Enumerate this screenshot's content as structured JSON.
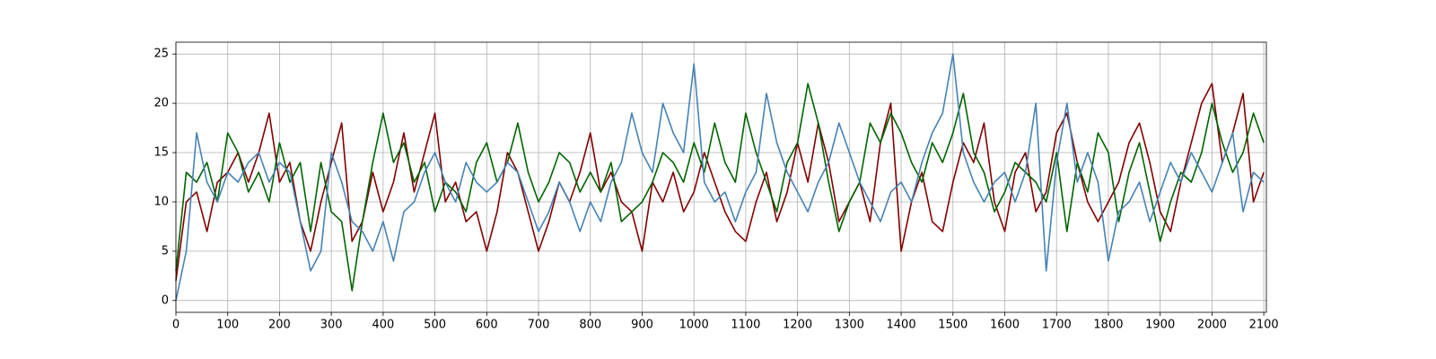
{
  "chart_data": {
    "type": "line",
    "x": [
      0,
      20,
      40,
      60,
      80,
      100,
      120,
      140,
      160,
      180,
      200,
      220,
      240,
      260,
      280,
      300,
      320,
      340,
      360,
      380,
      400,
      420,
      440,
      460,
      480,
      500,
      520,
      540,
      560,
      580,
      600,
      620,
      640,
      660,
      680,
      700,
      720,
      740,
      760,
      780,
      800,
      820,
      840,
      860,
      880,
      900,
      920,
      940,
      960,
      980,
      1000,
      1020,
      1040,
      1060,
      1080,
      1100,
      1120,
      1140,
      1160,
      1180,
      1200,
      1220,
      1240,
      1260,
      1280,
      1300,
      1320,
      1340,
      1360,
      1380,
      1400,
      1420,
      1440,
      1460,
      1480,
      1500,
      1520,
      1540,
      1560,
      1580,
      1600,
      1620,
      1640,
      1660,
      1680,
      1700,
      1720,
      1740,
      1760,
      1780,
      1800,
      1820,
      1840,
      1860,
      1880,
      1900,
      1920,
      1940,
      1960,
      1980,
      2000,
      2020,
      2040,
      2060,
      2080,
      2100
    ],
    "series": [
      {
        "color": "#800000",
        "values": [
          2,
          10,
          11,
          7,
          12,
          13,
          15,
          12,
          15,
          19,
          12,
          14,
          8,
          5,
          10,
          14,
          18,
          6,
          8,
          13,
          9,
          12,
          17,
          11,
          15,
          19,
          10,
          12,
          8,
          9,
          5,
          9,
          15,
          13,
          9,
          5,
          8,
          12,
          10,
          13,
          17,
          11,
          13,
          10,
          9,
          5,
          12,
          10,
          13,
          9,
          11,
          15,
          12,
          9,
          7,
          6,
          10,
          13,
          8,
          11,
          16,
          12,
          18,
          14,
          8,
          10,
          12,
          8,
          16,
          20,
          5,
          10,
          13,
          8,
          7,
          12,
          16,
          14,
          18,
          10,
          7,
          13,
          15,
          9,
          11,
          17,
          19,
          14,
          10,
          8,
          10,
          12,
          16,
          18,
          14,
          9,
          7,
          12,
          16,
          20,
          22,
          14,
          17,
          21,
          10,
          13
        ]
      },
      {
        "color": "#006400",
        "values": [
          3,
          13,
          12,
          14,
          10,
          17,
          15,
          11,
          13,
          10,
          16,
          12,
          14,
          7,
          14,
          9,
          8,
          1,
          8,
          14,
          19,
          14,
          16,
          12,
          14,
          9,
          12,
          11,
          9,
          14,
          16,
          12,
          14,
          18,
          13,
          10,
          12,
          15,
          14,
          11,
          13,
          11,
          14,
          8,
          9,
          10,
          12,
          15,
          14,
          12,
          16,
          13,
          18,
          14,
          12,
          19,
          15,
          12,
          9,
          14,
          16,
          22,
          18,
          12,
          7,
          10,
          12,
          18,
          16,
          19,
          17,
          14,
          12,
          16,
          14,
          17,
          21,
          15,
          13,
          9,
          11,
          14,
          13,
          12,
          10,
          15,
          7,
          14,
          11,
          17,
          15,
          8,
          13,
          16,
          11,
          6,
          10,
          13,
          12,
          15,
          20,
          16,
          13,
          15,
          19,
          16
        ]
      },
      {
        "color": "#4682b4",
        "values": [
          0,
          5,
          17,
          12,
          10,
          13,
          12,
          14,
          15,
          12,
          14,
          13,
          8,
          3,
          5,
          15,
          12,
          8,
          7,
          5,
          8,
          4,
          9,
          10,
          13,
          15,
          12,
          10,
          14,
          12,
          11,
          12,
          14,
          13,
          10,
          7,
          9,
          12,
          10,
          7,
          10,
          8,
          12,
          14,
          19,
          15,
          13,
          20,
          17,
          15,
          24,
          12,
          10,
          11,
          8,
          11,
          13,
          21,
          16,
          13,
          11,
          9,
          12,
          14,
          18,
          15,
          12,
          10,
          8,
          11,
          12,
          10,
          14,
          17,
          19,
          25,
          15,
          12,
          10,
          12,
          13,
          10,
          13,
          20,
          3,
          14,
          20,
          12,
          15,
          12,
          4,
          9,
          10,
          12,
          8,
          11,
          14,
          12,
          15,
          13,
          11,
          14,
          17,
          9,
          13,
          12
        ]
      }
    ],
    "xlim": [
      0,
      2105
    ],
    "ylim": [
      -1.2,
      26.2
    ],
    "xticks": [
      0,
      100,
      200,
      300,
      400,
      500,
      600,
      700,
      800,
      900,
      1000,
      1100,
      1200,
      1300,
      1400,
      1500,
      1600,
      1700,
      1800,
      1900,
      2000,
      2100
    ],
    "yticks": [
      0,
      5,
      10,
      15,
      20,
      25
    ],
    "grid": true
  }
}
